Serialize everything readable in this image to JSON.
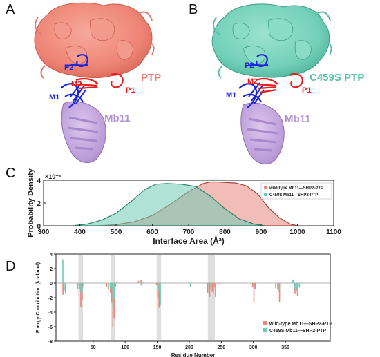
{
  "panels": {
    "A": {
      "label": "A",
      "labels": {
        "p2": "P2",
        "m2": "M2",
        "p1": "P1",
        "m1": "M1",
        "ptp": "PTP",
        "mb11": "Mb11"
      }
    },
    "B": {
      "label": "B",
      "labels": {
        "p2": "P2",
        "m2": "M2",
        "p1": "P1",
        "m1": "M1",
        "ptp": "C459S PTP",
        "mb11": "Mb11"
      }
    },
    "C": {
      "label": "C"
    },
    "D": {
      "label": "D"
    }
  },
  "colors": {
    "wildtype": "#e8877c",
    "c459s": "#6fcbb5",
    "overlap": "#c7bfb2",
    "ptp_wt": "#f08878",
    "ptp_mut": "#78d4bd",
    "mb11": "#c2a6db",
    "loop_blue": "#1a23d8",
    "loop_red": "#e81c1c",
    "shade": "#d9d9d9"
  },
  "chart_data": [
    {
      "type": "area",
      "panel": "C",
      "xlabel": "Interface Area  (Å²)",
      "ylabel": "Probability Density",
      "y_multiplier": "×10⁻³",
      "xlim": [
        300,
        1100
      ],
      "ylim": [
        0,
        4
      ],
      "x_ticks": [
        "300",
        "400",
        "500",
        "600",
        "700",
        "800",
        "900",
        "1000",
        "1100"
      ],
      "y_ticks": [
        "0",
        "2",
        "4"
      ],
      "legend_position": "top-right",
      "series": [
        {
          "name": "wild-type Mb11—SHP2-PTP",
          "x": [
            450,
            500,
            550,
            600,
            650,
            700,
            740,
            760,
            780,
            800,
            830,
            860,
            890,
            920,
            950,
            980,
            1000
          ],
          "y": [
            0.0,
            0.1,
            0.35,
            0.9,
            1.9,
            3.0,
            3.7,
            3.85,
            3.85,
            3.8,
            3.75,
            3.5,
            2.8,
            1.6,
            0.7,
            0.15,
            0.0
          ]
        },
        {
          "name": "C459S  Mb11—SHP2-PTP",
          "x": [
            380,
            420,
            460,
            500,
            540,
            580,
            610,
            640,
            680,
            720,
            760,
            800,
            840,
            880,
            910
          ],
          "y": [
            0.0,
            0.15,
            0.5,
            1.1,
            2.1,
            3.2,
            3.65,
            3.7,
            3.65,
            3.45,
            2.6,
            1.5,
            0.6,
            0.15,
            0.0
          ]
        }
      ]
    },
    {
      "type": "bar",
      "panel": "D",
      "xlabel": "Residue Number",
      "ylabel": "Energy Contribution (kcal/mol)",
      "xlim": [
        -8,
        420
      ],
      "ylim": [
        -8,
        4
      ],
      "x_ticks": [
        "50",
        "100",
        "150",
        "200",
        "250",
        "300",
        "350"
      ],
      "y_ticks": [
        "-8",
        "-6",
        "-4",
        "-2",
        "0",
        "2",
        "4"
      ],
      "legend_position": "bottom-right",
      "shaded_ranges": [
        [
          27,
          34
        ],
        [
          78,
          84
        ],
        [
          149,
          156
        ],
        [
          229,
          240
        ]
      ],
      "series": [
        {
          "name": "wild-type Mb11—SHP2-PTP",
          "bars": [
            [
              2,
              -1.6
            ],
            [
              6,
              -0.5
            ],
            [
              25,
              -0.4
            ],
            [
              28,
              -0.9
            ],
            [
              30,
              -3.3
            ],
            [
              32,
              -2.4
            ],
            [
              33,
              -0.6
            ],
            [
              70,
              -0.5
            ],
            [
              73,
              -0.9
            ],
            [
              76,
              -1.3
            ],
            [
              78,
              -2.7
            ],
            [
              80,
              -6.1
            ],
            [
              82,
              -4.9
            ],
            [
              84,
              -0.5
            ],
            [
              86,
              0.2
            ],
            [
              120,
              0.3
            ],
            [
              124,
              0.4
            ],
            [
              128,
              0.2
            ],
            [
              148,
              -0.3
            ],
            [
              150,
              -2.1
            ],
            [
              152,
              -3.4
            ],
            [
              154,
              -0.3
            ],
            [
              228,
              -1.4
            ],
            [
              231,
              -1.9
            ],
            [
              235,
              -1.2
            ],
            [
              238,
              -0.6
            ],
            [
              245,
              -0.2
            ],
            [
              298,
              -0.5
            ],
            [
              300,
              -2.7
            ],
            [
              302,
              -0.8
            ],
            [
              338,
              -1.2
            ],
            [
              340,
              -2.6
            ],
            [
              362,
              0.4
            ],
            [
              364,
              -1.5
            ],
            [
              366,
              -1.1
            ],
            [
              368,
              -1.7
            ],
            [
              371,
              -0.4
            ]
          ]
        },
        {
          "name": "C459S  Mb11—SHP2-PTP",
          "bars": [
            [
              1,
              3.3
            ],
            [
              3,
              -1.1
            ],
            [
              5,
              -1.5
            ],
            [
              24,
              -0.8
            ],
            [
              27,
              -0.9
            ],
            [
              29,
              -1.2
            ],
            [
              31,
              -1.4
            ],
            [
              72,
              -0.6
            ],
            [
              75,
              -0.8
            ],
            [
              77,
              -1.0
            ],
            [
              79,
              -3.3
            ],
            [
              81,
              -2.1
            ],
            [
              83,
              -0.5
            ],
            [
              123,
              -0.3
            ],
            [
              131,
              -0.2
            ],
            [
              149,
              -0.7
            ],
            [
              151,
              -1.1
            ],
            [
              153,
              -3.0
            ],
            [
              200,
              -0.5
            ],
            [
              229,
              -0.4
            ],
            [
              232,
              -0.8
            ],
            [
              236,
              -1.5
            ],
            [
              239,
              -1.9
            ],
            [
              299,
              -0.4
            ],
            [
              333,
              -0.7
            ],
            [
              336,
              -0.8
            ],
            [
              339,
              -1.0
            ],
            [
              360,
              0.5
            ],
            [
              363,
              -0.9
            ],
            [
              365,
              -0.7
            ],
            [
              367,
              -1.1
            ],
            [
              370,
              -0.6
            ]
          ]
        }
      ]
    }
  ]
}
